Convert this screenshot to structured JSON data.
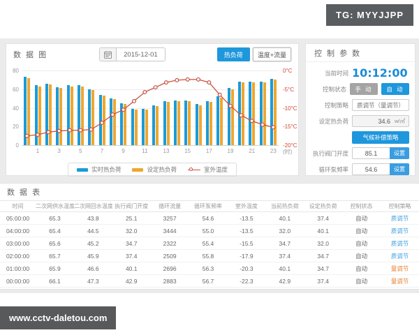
{
  "badges": {
    "tg": "TG: MYYJJPP",
    "watermark": "www.cctv-daletou.com"
  },
  "colors": {
    "accent_blue": "#1e97dc",
    "actual_bar": "#1b9bd8",
    "set_bar": "#efa72e",
    "temp_line": "#c9503f",
    "right_axis_text": "#cf4534",
    "strategy_quality": "#4aa3df",
    "strategy_quantity": "#e8853b"
  },
  "chart_panel": {
    "title": "数 据 图",
    "date_value": "2015-12-01",
    "buttons": {
      "heat_load": "热负荷",
      "temp_flow": "温度+流量"
    },
    "legend": [
      {
        "label": "实时热负荷",
        "color": "#1b9bd8",
        "type": "bar"
      },
      {
        "label": "设定热负荷",
        "color": "#efa72e",
        "type": "bar"
      },
      {
        "label": "室外温度",
        "color": "#c9503f",
        "type": "line"
      }
    ]
  },
  "chart_data": {
    "type": "bar+line",
    "x": [
      0,
      1,
      2,
      3,
      4,
      5,
      6,
      7,
      8,
      9,
      10,
      11,
      12,
      13,
      14,
      15,
      16,
      17,
      18,
      19,
      20,
      21,
      22,
      23
    ],
    "x_tick_labels": [
      "1",
      "3",
      "5",
      "7",
      "9",
      "11",
      "13",
      "15",
      "17",
      "19",
      "21",
      "23"
    ],
    "x_unit": "(时)",
    "series": [
      {
        "name": "实时热负荷",
        "type": "bar",
        "color": "#1b9bd8",
        "values": [
          73,
          64,
          66,
          62,
          64,
          64,
          60,
          54,
          50,
          45,
          39,
          39,
          43,
          47,
          48,
          48,
          44,
          47,
          52,
          61,
          68,
          68,
          68,
          71
        ]
      },
      {
        "name": "设定热负荷",
        "type": "bar",
        "color": "#efa72e",
        "values": [
          72,
          63,
          65,
          61,
          63,
          63,
          59,
          53,
          49,
          44,
          38,
          38,
          42,
          46,
          47,
          47,
          43,
          46,
          51,
          60,
          67,
          67,
          67,
          70
        ]
      },
      {
        "name": "室外温度",
        "type": "line",
        "color": "#c9503f",
        "axis": "right",
        "values": [
          -17.5,
          -17.2,
          -16.5,
          -16.2,
          -16.0,
          -16.0,
          -15.8,
          -14.0,
          -11.8,
          -10.5,
          -8.2,
          -5.8,
          -4.5,
          -3.2,
          -2.6,
          -2.4,
          -2.4,
          -3.2,
          -6.5,
          -9.5,
          -12.0,
          -13.5,
          -14.5,
          -15.2
        ]
      }
    ],
    "left_axis": {
      "ticks": [
        0,
        20,
        40,
        60,
        80
      ],
      "range": [
        0,
        80
      ]
    },
    "right_axis": {
      "ticks": [
        "0°C",
        "-5°C",
        "-10°C",
        "-15°C",
        "-20°C"
      ],
      "range": [
        -20,
        0
      ]
    },
    "grid": true,
    "legend_position": "bottom"
  },
  "control_panel": {
    "title": "控 制 参 数",
    "current_time": {
      "label": "当前时间",
      "value": "10:12:00"
    },
    "control_status": {
      "label": "控制状态",
      "manual": "手 动",
      "auto": "自 动"
    },
    "control_strategy": {
      "label": "控制策略",
      "value": "质调节（量调节）"
    },
    "set_heat_load": {
      "label": "设定热负荷",
      "value": "34.6",
      "unit": "w/㎡"
    },
    "climate_button": "气候补偿策略",
    "valve_opening": {
      "label": "执行阀门开度",
      "value": "85.1",
      "set_label": "设置"
    },
    "pump_frequency": {
      "label": "循环泵频率",
      "value": "54.6",
      "set_label": "设置"
    }
  },
  "table": {
    "title": "数 据 表",
    "columns": [
      "时间",
      "二次网供水温度",
      "二次网回水温度",
      "执行阀门开度",
      "循环流量",
      "循环泵频率",
      "室外温度",
      "当前热负荷",
      "设定热负荷",
      "控制状态",
      "控制策略"
    ],
    "rows": [
      [
        "05:00:00",
        "65.3",
        "43.8",
        "25.1",
        "3257",
        "54.6",
        "-13.5",
        "40.1",
        "37.4",
        "自动",
        "质调节"
      ],
      [
        "04:00:00",
        "65.4",
        "44.5",
        "32.0",
        "3444",
        "55.0",
        "-13.5",
        "32.0",
        "40.1",
        "自动",
        "质调节"
      ],
      [
        "03:00:00",
        "65.6",
        "45.2",
        "34.7",
        "2322",
        "55.4",
        "-15.5",
        "34.7",
        "32.0",
        "自动",
        "质调节"
      ],
      [
        "02:00:00",
        "65.7",
        "45.9",
        "37.4",
        "2509",
        "55.8",
        "-17.9",
        "37.4",
        "34.7",
        "自动",
        "质调节"
      ],
      [
        "01:00:00",
        "65.9",
        "46.6",
        "40.1",
        "2696",
        "56.3",
        "-20.3",
        "40.1",
        "34.7",
        "自动",
        "量调节"
      ],
      [
        "00:00:00",
        "66.1",
        "47.3",
        "42.9",
        "2883",
        "56.7",
        "-22.3",
        "42.9",
        "37.4",
        "自动",
        "量调节"
      ]
    ],
    "strategy_colors": {
      "质调节": "#4aa3df",
      "量调节": "#e8853b"
    }
  }
}
